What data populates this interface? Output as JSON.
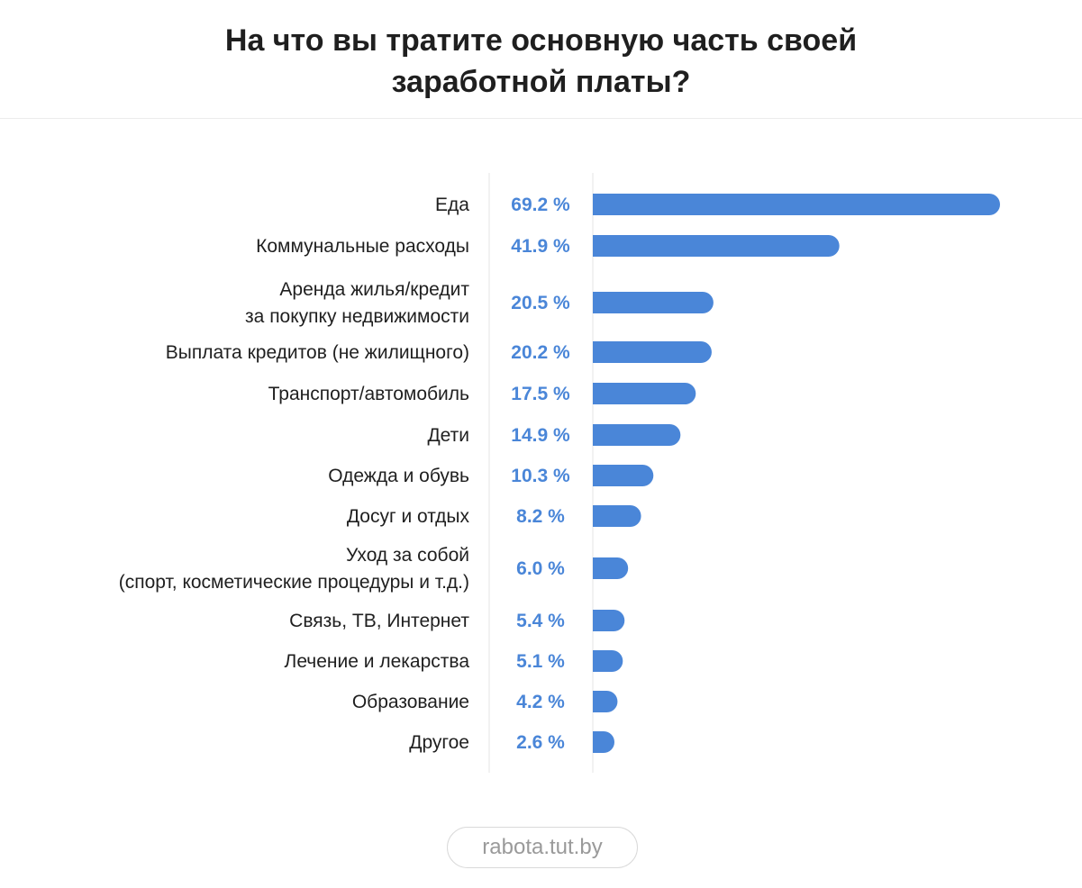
{
  "title_lines": [
    "На что вы тратите основную часть своей",
    "заработной платы?"
  ],
  "source": "rabota.tut.by",
  "colors": {
    "bar": "#4a86d8",
    "value_text": "#4a86d8",
    "axis_line": "#e4e4e4"
  },
  "chart_data": {
    "type": "bar",
    "orientation": "horizontal",
    "title": "На что вы тратите основную часть своей заработной платы?",
    "unit": "%",
    "xlim": [
      0,
      69.2
    ],
    "grid": false,
    "legend": "none",
    "categories": [
      [
        "Еда"
      ],
      [
        "Коммунальные расходы"
      ],
      [
        "Аренда жилья/кредит",
        "за покупку недвижимости"
      ],
      [
        "Выплата кредитов (не жилищного)"
      ],
      [
        "Транспорт/автомобиль"
      ],
      [
        "Дети"
      ],
      [
        "Одежда и обувь"
      ],
      [
        "Досуг и отдых"
      ],
      [
        "Уход за собой",
        "(спорт, косметические процедуры и т.д.)"
      ],
      [
        "Связь, ТВ, Интернет"
      ],
      [
        "Лечение и лекарства"
      ],
      [
        "Образование"
      ],
      [
        "Другое"
      ]
    ],
    "values": [
      69.2,
      41.9,
      20.5,
      20.2,
      17.5,
      14.9,
      10.3,
      8.2,
      6.0,
      5.4,
      5.1,
      4.2,
      2.6
    ],
    "value_labels": [
      "69.2 %",
      "41.9 %",
      "20.5 %",
      "20.2 %",
      "17.5 %",
      "14.9 %",
      "10.3 %",
      "8.2 %",
      "6.0 %",
      "5.4 %",
      "5.1 %",
      "4.2 %",
      "2.6 %"
    ]
  }
}
